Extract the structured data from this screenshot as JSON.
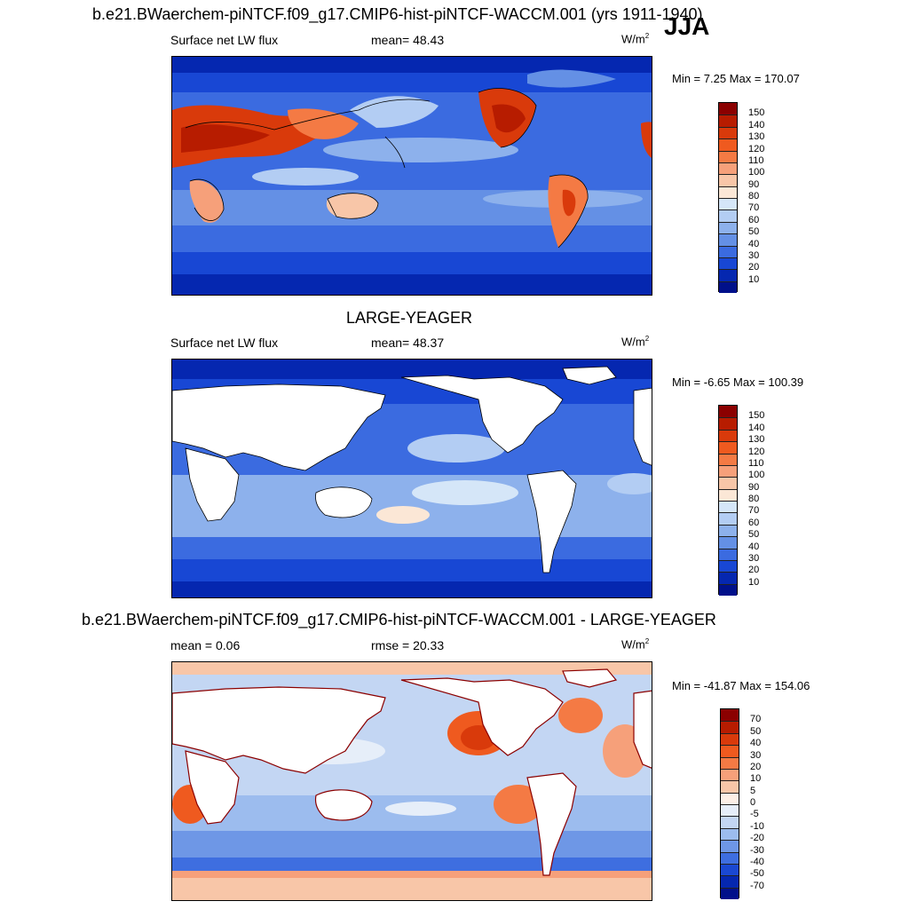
{
  "header": {
    "title": "b.e21.BWaerchem-piNTCF.f09_g17.CMIP6-hist-piNTCF-WACCM.001 (yrs 1911-1940)",
    "season": "JJA"
  },
  "panels": [
    {
      "id": "model",
      "variable": "Surface net LW flux",
      "stat": "mean=  48.43",
      "units_base": "W/m",
      "units_exp": "2",
      "minmax": "Min =   7.25 Max = 170.07",
      "colorbar_labels": [
        "150",
        "140",
        "130",
        "120",
        "110",
        "100",
        "90",
        "80",
        "70",
        "60",
        "50",
        "40",
        "30",
        "20",
        "10"
      ],
      "colorbar_colors": [
        "#8b0000",
        "#b71c00",
        "#d93a0b",
        "#ef5a1f",
        "#f47a44",
        "#f6a07a",
        "#f8c6a8",
        "#fbe7d6",
        "#d5e6f8",
        "#b3cdf3",
        "#8db1ec",
        "#6490e5",
        "#3b6be0",
        "#1847d4",
        "#0527b0",
        "#00108a"
      ],
      "mean_value": 48.43,
      "min_value": 7.25,
      "max_value": 170.07
    },
    {
      "id": "obs",
      "title": "LARGE-YEAGER",
      "variable": "Surface net LW flux",
      "stat": "mean=  48.37",
      "units_base": "W/m",
      "units_exp": "2",
      "minmax": "Min =  -6.65 Max = 100.39",
      "colorbar_labels": [
        "150",
        "140",
        "130",
        "120",
        "110",
        "100",
        "90",
        "80",
        "70",
        "60",
        "50",
        "40",
        "30",
        "20",
        "10"
      ],
      "colorbar_colors": [
        "#8b0000",
        "#b71c00",
        "#d93a0b",
        "#ef5a1f",
        "#f47a44",
        "#f6a07a",
        "#f8c6a8",
        "#fbe7d6",
        "#d5e6f8",
        "#b3cdf3",
        "#8db1ec",
        "#6490e5",
        "#3b6be0",
        "#1847d4",
        "#0527b0",
        "#00108a"
      ],
      "mean_value": 48.37,
      "min_value": -6.65,
      "max_value": 100.39
    },
    {
      "id": "diff",
      "title": "b.e21.BWaerchem-piNTCF.f09_g17.CMIP6-hist-piNTCF-WACCM.001 - LARGE-YEAGER",
      "stat_left": "mean =   0.06",
      "stat": "rmse =  20.33",
      "units_base": "W/m",
      "units_exp": "2",
      "minmax": "Min = -41.87 Max = 154.06",
      "colorbar_labels": [
        "70",
        "50",
        "40",
        "30",
        "20",
        "10",
        "5",
        "0",
        "-5",
        "-10",
        "-20",
        "-30",
        "-40",
        "-50",
        "-70"
      ],
      "colorbar_colors": [
        "#8b0000",
        "#b71c00",
        "#d93a0b",
        "#ef5a1f",
        "#f47a44",
        "#f6a07a",
        "#f8c6a8",
        "#fcefe6",
        "#e6eef9",
        "#c3d6f3",
        "#9cbcee",
        "#6e97e6",
        "#3e6ee0",
        "#1a48d2",
        "#0527b0",
        "#00108a"
      ],
      "mean_value": 0.06,
      "rmse_value": 20.33,
      "min_value": -41.87,
      "max_value": 154.06
    }
  ]
}
